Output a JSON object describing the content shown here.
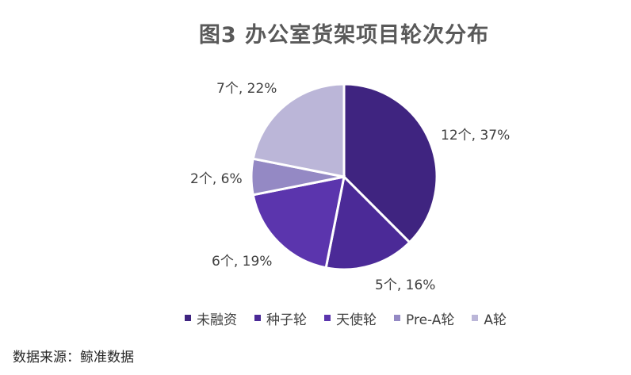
{
  "chart_data": {
    "type": "pie",
    "title": "图3 办公室货架项目轮次分布",
    "categories": [
      "未融资",
      "种子轮",
      "天使轮",
      "Pre-A轮",
      "A轮"
    ],
    "values": [
      12,
      5,
      6,
      2,
      7
    ],
    "percent_labels": [
      "37%",
      "16%",
      "19%",
      "6%",
      "22%"
    ],
    "data_labels": [
      "12个, 37%",
      "5个, 16%",
      "6个, 19%",
      "2个, 6%",
      "7个, 22%"
    ],
    "colors": [
      "#3f2480",
      "#4b2a97",
      "#5b35ad",
      "#9489c4",
      "#bbb6d8"
    ],
    "legend_position": "bottom"
  },
  "source_note": "数据来源：鲸准数据"
}
